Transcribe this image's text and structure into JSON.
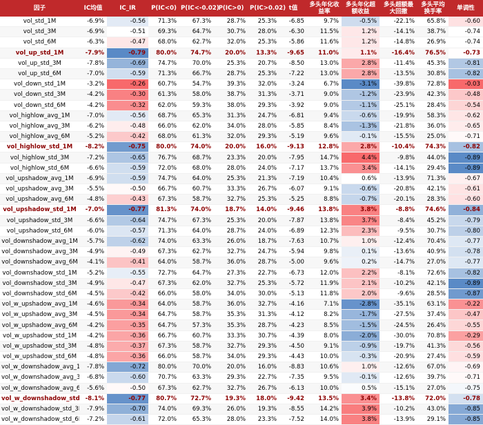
{
  "table": {
    "header": [
      "因子",
      "IC均值",
      "IC_IR",
      "P(IC<0)",
      "P(IC<-0.02)",
      "P(IC>0)",
      "P(IC>0.02)",
      "t值",
      "多头年化收益率",
      "多头年化超额收益",
      "多头超额最大回撤",
      "多头平均换手率",
      "单调性"
    ],
    "rows": [
      [
        "vol_std_1M",
        "-6.9%",
        "-0.56",
        "71.3%",
        "67.3%",
        "28.7%",
        "25.3%",
        "-6.85",
        "9.7%",
        "-0.5%",
        "-22.1%",
        "65.8%",
        "-0.60"
      ],
      [
        "vol_std_3M",
        "-6.9%",
        "-0.51",
        "69.3%",
        "64.7%",
        "30.7%",
        "28.0%",
        "-6.30",
        "11.5%",
        "1.2%",
        "-14.1%",
        "38.7%",
        "-0.74"
      ],
      [
        "vol_std_6M",
        "-6.3%",
        "-0.47",
        "68.0%",
        "62.7%",
        "32.0%",
        "25.3%",
        "-5.86",
        "11.6%",
        "1.2%",
        "-14.8%",
        "26.9%",
        "-0.74"
      ],
      [
        "vol_up_std_1M",
        "-7.9%",
        "-0.79",
        "80.0%",
        "74.7%",
        "20.0%",
        "13.3%",
        "-9.65",
        "11.0%",
        "1.1%",
        "-16.4%",
        "76.5%",
        "-0.73"
      ],
      [
        "vol_up_std_3M",
        "-7.8%",
        "-0.69",
        "74.7%",
        "70.0%",
        "25.3%",
        "20.7%",
        "-8.50",
        "13.0%",
        "2.8%",
        "-11.4%",
        "45.3%",
        "-0.81"
      ],
      [
        "vol_up_std_6M",
        "-7.0%",
        "-0.59",
        "71.3%",
        "66.7%",
        "28.7%",
        "25.3%",
        "-7.22",
        "13.0%",
        "2.8%",
        "-13.5%",
        "30.8%",
        "-0.82"
      ],
      [
        "vol_down_std_1M",
        "-3.2%",
        "-0.26",
        "60.7%",
        "54.7%",
        "39.3%",
        "32.0%",
        "-3.24",
        "6.7%",
        "-3.1%",
        "-39.8%",
        "72.8%",
        "-0.03"
      ],
      [
        "vol_down_std_3M",
        "-4.2%",
        "-0.30",
        "61.3%",
        "58.0%",
        "38.7%",
        "31.3%",
        "-3.71",
        "9.0%",
        "-1.2%",
        "-23.9%",
        "42.3%",
        "-0.48"
      ],
      [
        "vol_down_std_6M",
        "-4.2%",
        "-0.32",
        "62.0%",
        "59.3%",
        "38.0%",
        "29.3%",
        "-3.92",
        "9.0%",
        "-1.1%",
        "-25.1%",
        "28.4%",
        "-0.54"
      ],
      [
        "vol_highlow_avg_1M",
        "-7.0%",
        "-0.56",
        "68.7%",
        "65.3%",
        "31.3%",
        "24.7%",
        "-6.81",
        "9.4%",
        "-0.6%",
        "-19.9%",
        "58.3%",
        "-0.62"
      ],
      [
        "vol_highlow_avg_3M",
        "-6.2%",
        "-0.48",
        "66.0%",
        "62.0%",
        "34.0%",
        "28.0%",
        "-5.85",
        "8.4%",
        "-1.3%",
        "-21.8%",
        "36.0%",
        "-0.65"
      ],
      [
        "vol_highlow_avg_6M",
        "-5.2%",
        "-0.42",
        "68.0%",
        "61.3%",
        "32.0%",
        "29.3%",
        "-5.19",
        "9.6%",
        "-0.1%",
        "-15.5%",
        "25.0%",
        "-0.71"
      ],
      [
        "vol_highlow_std_1M",
        "-8.2%",
        "-0.75",
        "80.0%",
        "74.0%",
        "20.0%",
        "16.0%",
        "-9.13",
        "12.8%",
        "2.8%",
        "-10.4%",
        "74.3%",
        "-0.82"
      ],
      [
        "vol_highlow_std_3M",
        "-7.2%",
        "-0.65",
        "76.7%",
        "68.7%",
        "23.3%",
        "20.0%",
        "-7.95",
        "14.7%",
        "4.4%",
        "-9.8%",
        "44.0%",
        "-0.89"
      ],
      [
        "vol_highlow_std_6M",
        "-6.6%",
        "-0.59",
        "72.0%",
        "68.0%",
        "28.0%",
        "24.0%",
        "-7.17",
        "13.7%",
        "3.4%",
        "-14.1%",
        "29.4%",
        "-0.89"
      ],
      [
        "vol_upshadow_avg_1M",
        "-6.9%",
        "-0.59",
        "74.7%",
        "64.0%",
        "25.3%",
        "21.3%",
        "-7.19",
        "10.4%",
        "0.6%",
        "-13.9%",
        "71.3%",
        "-0.67"
      ],
      [
        "vol_upshadow_avg_3M",
        "-5.5%",
        "-0.50",
        "66.7%",
        "60.7%",
        "33.3%",
        "26.7%",
        "-6.07",
        "9.1%",
        "-0.6%",
        "-20.8%",
        "42.1%",
        "-0.61"
      ],
      [
        "vol_upshadow_avg_6M",
        "-4.8%",
        "-0.43",
        "67.3%",
        "58.7%",
        "32.7%",
        "25.3%",
        "-5.25",
        "8.8%",
        "-0.7%",
        "-20.1%",
        "28.3%",
        "-0.60"
      ],
      [
        "vol_upshadow_std_1M",
        "-7.0%",
        "-0.77",
        "81.3%",
        "74.0%",
        "18.7%",
        "14.0%",
        "-9.46",
        "13.8%",
        "3.8%",
        "-8.8%",
        "74.6%",
        "-0.84"
      ],
      [
        "vol_upshadow_std_3M",
        "-6.6%",
        "-0.64",
        "74.7%",
        "67.3%",
        "25.3%",
        "20.0%",
        "-7.87",
        "13.8%",
        "3.7%",
        "-8.4%",
        "45.2%",
        "-0.79"
      ],
      [
        "vol_upshadow_std_6M",
        "-6.0%",
        "-0.57",
        "71.3%",
        "64.0%",
        "28.7%",
        "24.0%",
        "-6.89",
        "12.3%",
        "2.3%",
        "-9.5%",
        "30.7%",
        "-0.80"
      ],
      [
        "vol_downshadow_avg_1M",
        "-5.7%",
        "-0.62",
        "74.0%",
        "63.3%",
        "26.0%",
        "18.7%",
        "-7.63",
        "10.7%",
        "1.0%",
        "-12.4%",
        "70.4%",
        "-0.77"
      ],
      [
        "vol_downshadow_avg_3M",
        "-4.9%",
        "-0.49",
        "67.3%",
        "62.7%",
        "32.7%",
        "24.7%",
        "-5.94",
        "9.8%",
        "0.1%",
        "-13.6%",
        "40.9%",
        "-0.78"
      ],
      [
        "vol_downshadow_avg_6M",
        "-4.1%",
        "-0.41",
        "64.0%",
        "58.7%",
        "36.0%",
        "28.7%",
        "-5.00",
        "9.6%",
        "0.2%",
        "-14.7%",
        "27.0%",
        "-0.77"
      ],
      [
        "vol_downshadow_std_1M",
        "-5.2%",
        "-0.55",
        "72.7%",
        "64.7%",
        "27.3%",
        "22.7%",
        "-6.73",
        "12.0%",
        "2.2%",
        "-8.1%",
        "72.6%",
        "-0.82"
      ],
      [
        "vol_downshadow_std_3M",
        "-4.9%",
        "-0.47",
        "67.3%",
        "62.0%",
        "32.7%",
        "25.3%",
        "-5.72",
        "11.9%",
        "2.1%",
        "-10.2%",
        "42.1%",
        "-0.89"
      ],
      [
        "vol_downshadow_std_6M",
        "-4.5%",
        "-0.42",
        "66.0%",
        "58.0%",
        "34.0%",
        "30.0%",
        "-5.13",
        "11.8%",
        "2.0%",
        "-9.6%",
        "28.5%",
        "-0.87"
      ],
      [
        "vol_w_upshadow_avg_1M",
        "-4.6%",
        "-0.34",
        "64.0%",
        "58.7%",
        "36.0%",
        "32.7%",
        "-4.16",
        "7.1%",
        "-2.8%",
        "-35.1%",
        "63.1%",
        "-0.22"
      ],
      [
        "vol_w_upshadow_avg_3M",
        "-4.5%",
        "-0.34",
        "64.7%",
        "58.7%",
        "35.3%",
        "31.3%",
        "-4.12",
        "8.2%",
        "-1.7%",
        "-27.5%",
        "37.4%",
        "-0.47"
      ],
      [
        "vol_w_upshadow_avg_6M",
        "-4.2%",
        "-0.35",
        "64.7%",
        "57.3%",
        "35.3%",
        "28.7%",
        "-4.23",
        "8.5%",
        "-1.5%",
        "-24.5%",
        "26.4%",
        "-0.55"
      ],
      [
        "vol_w_upshadow_std_1M",
        "-4.2%",
        "-0.36",
        "66.7%",
        "60.7%",
        "33.3%",
        "30.7%",
        "-4.39",
        "8.0%",
        "-2.0%",
        "-30.0%",
        "70.8%",
        "-0.29"
      ],
      [
        "vol_w_upshadow_std_3M",
        "-4.8%",
        "-0.37",
        "67.3%",
        "58.7%",
        "32.7%",
        "29.3%",
        "-4.50",
        "9.1%",
        "-0.9%",
        "-19.7%",
        "41.3%",
        "-0.56"
      ],
      [
        "vol_w_upshadow_std_6M",
        "-4.8%",
        "-0.36",
        "66.0%",
        "58.7%",
        "34.0%",
        "29.3%",
        "-4.43",
        "10.0%",
        "-0.3%",
        "-20.9%",
        "27.4%",
        "-0.59"
      ],
      [
        "vol_w_downshadow_avg_1M",
        "-7.8%",
        "-0.72",
        "80.0%",
        "70.0%",
        "20.0%",
        "16.0%",
        "-8.83",
        "10.6%",
        "1.0%",
        "-12.6%",
        "67.0%",
        "-0.69"
      ],
      [
        "vol_w_downshadow_avg_3M",
        "-6.8%",
        "-0.60",
        "70.7%",
        "63.3%",
        "29.3%",
        "22.7%",
        "-7.35",
        "9.5%",
        "-0.1%",
        "-12.6%",
        "39.7%",
        "-0.71"
      ],
      [
        "vol_w_downshadow_avg_6M",
        "-5.6%",
        "-0.50",
        "67.3%",
        "62.7%",
        "32.7%",
        "26.7%",
        "-6.13",
        "10.0%",
        "0.5%",
        "-15.1%",
        "27.0%",
        "-0.75"
      ],
      [
        "vol_w_downshadow_std_1M",
        "-8.1%",
        "-0.77",
        "80.7%",
        "72.7%",
        "19.3%",
        "18.0%",
        "-9.42",
        "13.5%",
        "3.4%",
        "-13.8%",
        "72.0%",
        "-0.78"
      ],
      [
        "vol_w_downshadow_std_3M",
        "-7.9%",
        "-0.70",
        "74.0%",
        "69.3%",
        "26.0%",
        "19.3%",
        "-8.55",
        "14.2%",
        "3.9%",
        "-10.2%",
        "43.0%",
        "-0.85"
      ],
      [
        "vol_w_downshadow_std_6M",
        "-7.2%",
        "-0.61",
        "72.0%",
        "65.3%",
        "28.0%",
        "23.3%",
        "-7.52",
        "14.0%",
        "3.8%",
        "-13.9%",
        "29.1%",
        "-0.85"
      ]
    ],
    "highlight_rows": [
      3,
      12,
      18,
      36
    ],
    "heatmap_columns": [
      2,
      9,
      12
    ]
  }
}
